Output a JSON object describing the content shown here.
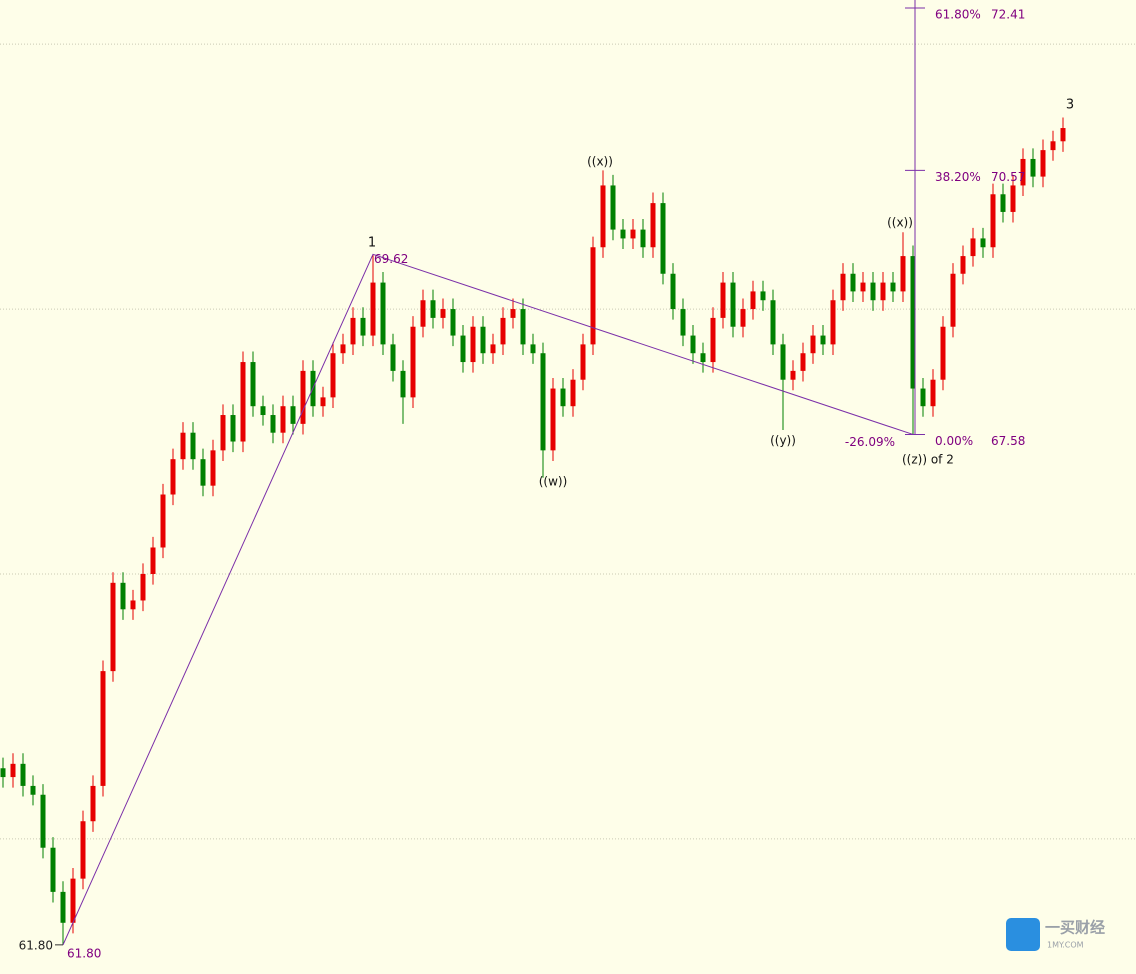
{
  "chart_data": {
    "type": "candlestick",
    "xlim": [
      -0.3,
      113.3
    ],
    "ylim": [
      61.47,
      72.5
    ],
    "yticks": [
      63,
      66,
      69,
      72
    ],
    "grid": true,
    "up_color": "#e60000",
    "down_color": "#008000",
    "line_color": "#7b2fa8",
    "x": [
      0,
      1,
      2,
      3,
      4,
      5,
      6,
      7,
      8,
      9,
      10,
      11,
      12,
      13,
      14,
      15,
      16,
      17,
      18,
      19,
      20,
      21,
      22,
      23,
      24,
      25,
      26,
      27,
      28,
      29,
      30,
      31,
      32,
      33,
      34,
      35,
      36,
      37,
      38,
      39,
      40,
      41,
      42,
      43,
      44,
      45,
      46,
      47,
      48,
      49,
      50,
      51,
      52,
      53,
      54,
      55,
      56,
      57,
      58,
      59,
      60,
      61,
      62,
      63,
      64,
      65,
      66,
      67,
      68,
      69,
      70,
      71,
      72,
      73,
      74,
      75,
      76,
      77,
      78,
      79,
      80,
      81,
      82,
      83,
      84,
      85,
      86,
      87,
      88,
      89,
      90,
      91,
      92,
      93,
      94,
      95,
      96,
      97,
      98,
      99,
      100,
      101,
      102,
      103,
      104,
      105,
      106
    ],
    "open": [
      63.8,
      63.7,
      63.85,
      63.6,
      63.5,
      62.9,
      62.4,
      62.05,
      62.55,
      63.2,
      63.6,
      64.9,
      65.9,
      65.6,
      65.7,
      66.0,
      66.3,
      66.9,
      67.3,
      67.6,
      67.3,
      67.0,
      67.4,
      67.8,
      67.5,
      68.4,
      67.9,
      67.8,
      67.6,
      67.9,
      67.7,
      68.3,
      67.9,
      68.0,
      68.5,
      68.6,
      68.9,
      68.7,
      69.3,
      68.6,
      68.3,
      68.0,
      68.8,
      69.1,
      68.9,
      69.0,
      68.7,
      68.4,
      68.8,
      68.5,
      68.6,
      68.9,
      69.0,
      68.6,
      68.5,
      67.4,
      68.1,
      67.9,
      68.2,
      68.6,
      69.7,
      70.4,
      69.9,
      69.8,
      69.9,
      69.7,
      70.2,
      69.4,
      69.0,
      68.7,
      68.5,
      68.4,
      68.9,
      69.3,
      68.8,
      69.0,
      69.2,
      69.1,
      68.6,
      68.2,
      68.3,
      68.5,
      68.7,
      68.6,
      69.1,
      69.4,
      69.2,
      69.3,
      69.1,
      69.3,
      69.2,
      69.6,
      68.1,
      67.9,
      68.2,
      68.8,
      69.4,
      69.6,
      69.8,
      69.7,
      70.3,
      70.1,
      70.4,
      70.7,
      70.5,
      70.8,
      70.9
    ],
    "high": [
      63.92,
      63.97,
      63.97,
      63.72,
      63.62,
      63.02,
      62.52,
      62.67,
      63.32,
      63.72,
      65.02,
      66.02,
      66.02,
      65.82,
      66.12,
      66.42,
      67.02,
      67.42,
      67.72,
      67.72,
      67.42,
      67.52,
      67.92,
      67.92,
      68.52,
      68.52,
      68.02,
      67.92,
      68.02,
      68.02,
      68.42,
      68.42,
      68.12,
      68.62,
      68.72,
      69.02,
      69.02,
      69.62,
      69.42,
      68.72,
      68.42,
      68.92,
      69.22,
      69.22,
      69.12,
      69.12,
      68.82,
      68.92,
      68.92,
      68.72,
      69.02,
      69.12,
      69.12,
      68.72,
      68.62,
      68.22,
      68.22,
      68.32,
      68.72,
      69.82,
      70.57,
      70.52,
      70.02,
      70.02,
      70.02,
      70.32,
      70.32,
      69.52,
      69.12,
      68.82,
      68.62,
      69.02,
      69.42,
      69.42,
      69.12,
      69.32,
      69.32,
      69.22,
      68.72,
      68.42,
      68.62,
      68.82,
      68.82,
      69.22,
      69.52,
      69.52,
      69.42,
      69.42,
      69.42,
      69.42,
      69.87,
      69.72,
      68.22,
      68.32,
      68.92,
      69.52,
      69.72,
      69.92,
      69.92,
      70.42,
      70.42,
      70.52,
      70.82,
      70.82,
      70.92,
      71.02,
      71.17
    ],
    "low": [
      63.58,
      63.58,
      63.48,
      63.38,
      62.78,
      62.28,
      61.8,
      61.93,
      62.43,
      63.08,
      63.48,
      64.78,
      65.48,
      65.48,
      65.58,
      65.88,
      66.18,
      66.78,
      67.18,
      67.18,
      66.88,
      66.88,
      67.28,
      67.38,
      67.38,
      67.78,
      67.68,
      67.48,
      67.48,
      67.58,
      67.58,
      67.78,
      67.78,
      67.88,
      68.38,
      68.48,
      68.58,
      68.58,
      68.48,
      68.18,
      67.7,
      67.88,
      68.68,
      68.78,
      68.78,
      68.58,
      68.28,
      68.28,
      68.38,
      68.38,
      68.48,
      68.78,
      68.48,
      68.38,
      67.09,
      67.28,
      67.78,
      67.78,
      68.08,
      68.48,
      69.58,
      69.78,
      69.68,
      69.68,
      69.58,
      69.58,
      69.28,
      68.88,
      68.58,
      68.38,
      68.28,
      68.28,
      68.78,
      68.68,
      68.68,
      68.88,
      68.98,
      68.48,
      67.63,
      68.08,
      68.18,
      68.38,
      68.48,
      68.48,
      68.98,
      69.08,
      69.08,
      68.98,
      68.98,
      69.08,
      69.08,
      67.58,
      67.78,
      67.78,
      68.08,
      68.68,
      69.28,
      69.48,
      69.58,
      69.58,
      69.98,
      69.98,
      70.28,
      70.38,
      70.38,
      70.68,
      70.78
    ],
    "close": [
      63.7,
      63.85,
      63.6,
      63.5,
      62.9,
      62.4,
      62.05,
      62.55,
      63.2,
      63.6,
      64.9,
      65.9,
      65.6,
      65.7,
      66.0,
      66.3,
      66.9,
      67.3,
      67.6,
      67.3,
      67.0,
      67.4,
      67.8,
      67.5,
      68.4,
      67.9,
      67.8,
      67.6,
      67.9,
      67.7,
      68.3,
      67.9,
      68.0,
      68.5,
      68.6,
      68.9,
      68.7,
      69.3,
      68.6,
      68.3,
      68.0,
      68.8,
      69.1,
      68.9,
      69.0,
      68.7,
      68.4,
      68.8,
      68.5,
      68.6,
      68.9,
      69.0,
      68.6,
      68.5,
      67.4,
      68.1,
      67.9,
      68.2,
      68.6,
      69.7,
      70.4,
      69.9,
      69.8,
      69.9,
      69.7,
      70.2,
      69.4,
      69.0,
      68.7,
      68.5,
      68.4,
      68.9,
      69.3,
      68.8,
      69.0,
      69.2,
      69.1,
      68.6,
      68.2,
      68.3,
      68.5,
      68.7,
      68.6,
      69.1,
      69.4,
      69.2,
      69.3,
      69.1,
      69.3,
      69.2,
      69.6,
      68.1,
      67.9,
      68.2,
      68.8,
      69.4,
      69.6,
      69.8,
      69.7,
      70.3,
      70.1,
      70.4,
      70.7,
      70.5,
      70.8,
      70.9,
      71.05
    ],
    "wave_line": [
      {
        "x": 6,
        "value": 61.8,
        "label": "61.80"
      },
      {
        "x": 37,
        "value": 69.62
      },
      {
        "x": 91,
        "value": 67.58
      }
    ],
    "price_marker": {
      "value": 61.8,
      "label": "61.80"
    },
    "fib_levels": [
      {
        "percent": "61.80%",
        "value": 72.41
      },
      {
        "percent": "38.20%",
        "value": 70.57
      },
      {
        "percent": "0.00%",
        "value": 67.58
      }
    ],
    "fib_extension": "-26.09%",
    "wave_labels": [
      "1",
      "((w))",
      "((x))",
      "((y))",
      "((x))",
      "((z)) of 2",
      "3"
    ]
  },
  "watermark": {
    "name": "一买财经",
    "site": "1MY.COM"
  }
}
